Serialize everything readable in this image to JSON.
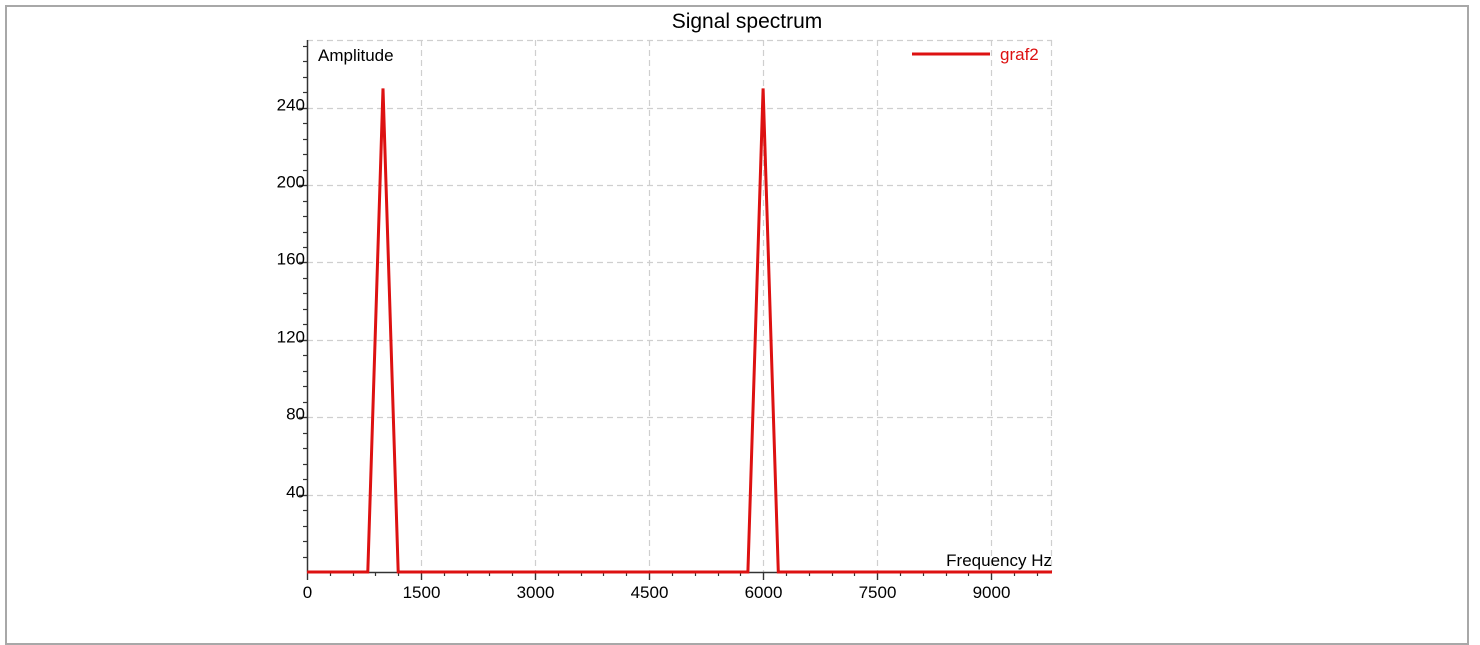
{
  "chart_data": {
    "type": "line",
    "title": "Signal spectrum",
    "xlabel": "Frequency Hz",
    "ylabel": "Amplitude",
    "xlim": [
      0,
      9800
    ],
    "ylim": [
      0,
      275
    ],
    "x_ticks": [
      0,
      1500,
      3000,
      4500,
      6000,
      7500,
      9000
    ],
    "y_ticks": [
      40,
      80,
      120,
      160,
      200,
      240
    ],
    "grid": true,
    "legend_position": "top-right",
    "series": [
      {
        "name": "graf2",
        "color": "#dd1111",
        "x": [
          0,
          800,
          1000,
          1200,
          5800,
          6000,
          6200,
          9800
        ],
        "y": [
          0,
          0,
          250,
          0,
          0,
          250,
          0,
          0
        ]
      }
    ]
  }
}
